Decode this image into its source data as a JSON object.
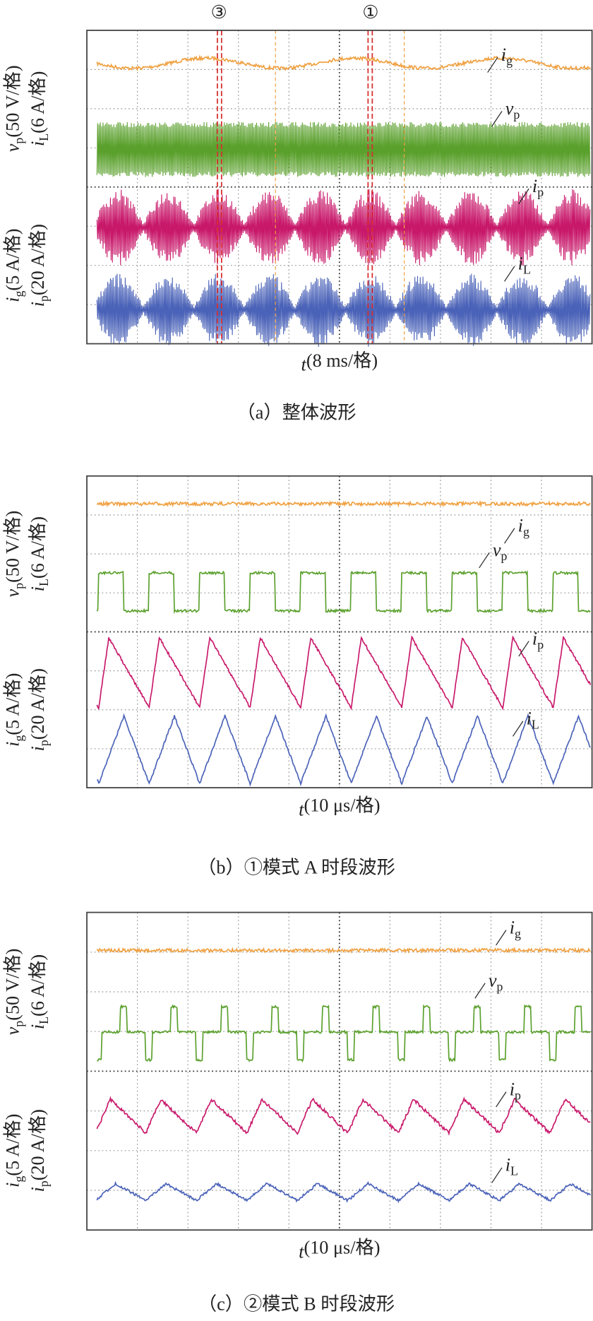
{
  "panels": [
    {
      "markers": [
        "③",
        "①"
      ],
      "axis_labels": [
        {
          "symbol": "v",
          "sub": "p",
          "unit": "(50 V/格)"
        },
        {
          "symbol": "i",
          "sub": "L",
          "unit": "(6 A/格)"
        },
        {
          "symbol": "i",
          "sub": "g",
          "unit": "(5 A/格)"
        },
        {
          "symbol": "i",
          "sub": "p",
          "unit": "(20 A/格)"
        }
      ],
      "signal_labels": [
        {
          "symbol": "i",
          "sub": "g"
        },
        {
          "symbol": "v",
          "sub": "p"
        },
        {
          "symbol": "i",
          "sub": "p"
        },
        {
          "symbol": "i",
          "sub": "L"
        }
      ],
      "time_label": {
        "symbol": "t",
        "unit": "(8 ms/格)"
      },
      "caption": "（a）整体波形"
    },
    {
      "axis_labels": [
        {
          "symbol": "v",
          "sub": "p",
          "unit": "(50 V/格)"
        },
        {
          "symbol": "i",
          "sub": "L",
          "unit": "(6 A/格)"
        },
        {
          "symbol": "i",
          "sub": "g",
          "unit": "(5 A/格)"
        },
        {
          "symbol": "i",
          "sub": "p",
          "unit": "(20 A/格)"
        }
      ],
      "signal_labels": [
        {
          "symbol": "i",
          "sub": "g"
        },
        {
          "symbol": "v",
          "sub": "p"
        },
        {
          "symbol": "i",
          "sub": "p"
        },
        {
          "symbol": "i",
          "sub": "L"
        }
      ],
      "time_label": {
        "symbol": "t",
        "unit": "(10 μs/格)"
      },
      "caption": "（b）①模式 A 时段波形"
    },
    {
      "axis_labels": [
        {
          "symbol": "v",
          "sub": "p",
          "unit": "(50 V/格)"
        },
        {
          "symbol": "i",
          "sub": "L",
          "unit": "(6 A/格)"
        },
        {
          "symbol": "i",
          "sub": "g",
          "unit": "(5 A/格)"
        },
        {
          "symbol": "i",
          "sub": "p",
          "unit": "(20 A/格)"
        }
      ],
      "signal_labels": [
        {
          "symbol": "i",
          "sub": "g"
        },
        {
          "symbol": "v",
          "sub": "p"
        },
        {
          "symbol": "i",
          "sub": "p"
        },
        {
          "symbol": "i",
          "sub": "L"
        }
      ],
      "time_label": {
        "symbol": "t",
        "unit": "(10 μs/格)"
      },
      "caption": "（c）②模式 B 时段波形"
    }
  ]
}
